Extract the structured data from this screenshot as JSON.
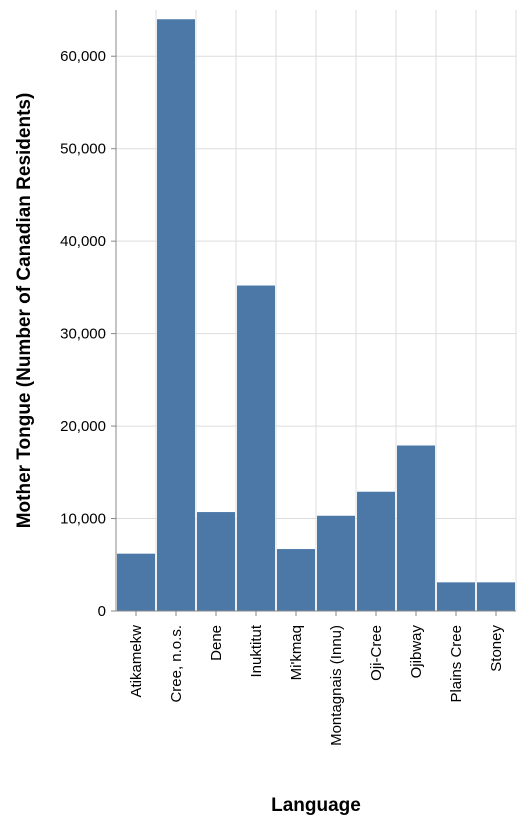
{
  "chart_data": {
    "type": "bar",
    "categories": [
      "Atikamekw",
      "Cree, n.o.s.",
      "Dene",
      "Inuktitut",
      "Mi'kmaq",
      "Montagnais (Innu)",
      "Oji-Cree",
      "Ojibway",
      "Plains Cree",
      "Stoney"
    ],
    "values": [
      6200,
      64000,
      10700,
      35200,
      6700,
      10300,
      12900,
      17900,
      3100,
      3100
    ],
    "xlabel": "Language",
    "ylabel": "Mother Tongue (Number of Canadian Residents)",
    "ylim": [
      0,
      65000
    ],
    "yticks": [
      0,
      10000,
      20000,
      30000,
      40000,
      50000,
      60000
    ],
    "ytick_labels": [
      "0",
      "10,000",
      "20,000",
      "30,000",
      "40,000",
      "50,000",
      "60,000"
    ],
    "bar_color": "#4c78a8",
    "grid": true,
    "legend": "none"
  }
}
